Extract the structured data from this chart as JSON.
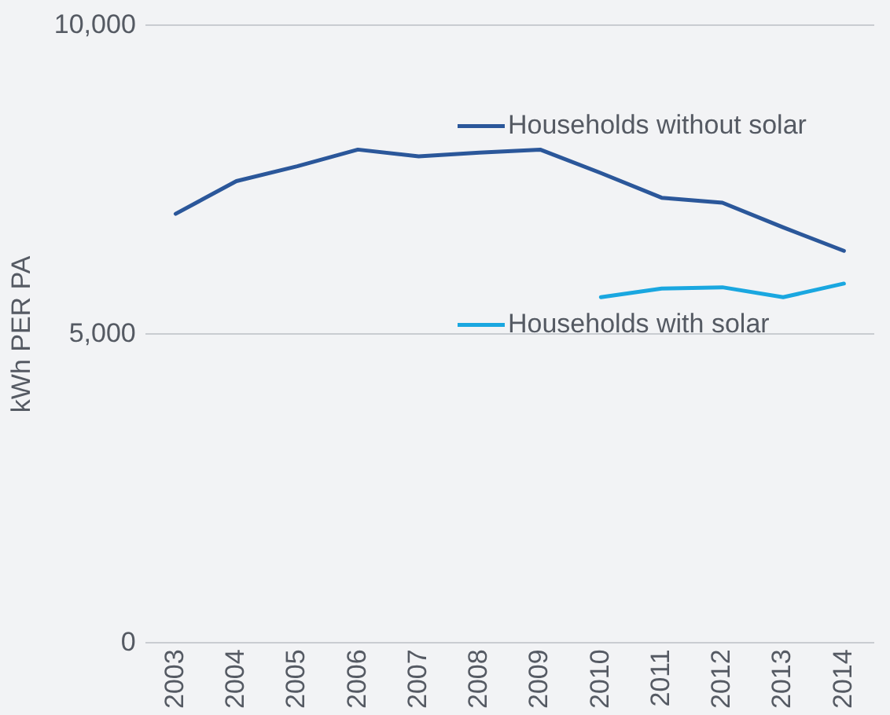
{
  "chart_data": {
    "type": "line",
    "ylabel": "kWh PER PA",
    "categories": [
      "2003",
      "2004",
      "2005",
      "2006",
      "2007",
      "2008",
      "2009",
      "2010",
      "2011",
      "2012",
      "2013",
      "2014"
    ],
    "series": [
      {
        "name": "Households without solar",
        "color": "#2b579a",
        "values": [
          6950,
          7480,
          7720,
          7990,
          7880,
          7940,
          7990,
          7610,
          7210,
          7130,
          6730,
          6350
        ]
      },
      {
        "name": "Households with solar",
        "color": "#1aa7e0",
        "values": [
          null,
          null,
          null,
          null,
          null,
          null,
          null,
          5600,
          5740,
          5760,
          5600,
          5820
        ]
      }
    ],
    "ylim": [
      0,
      10000
    ],
    "yticks": [
      {
        "value": 0,
        "label": "0"
      },
      {
        "value": 5000,
        "label": "5,000"
      },
      {
        "value": 10000,
        "label": "10,000"
      }
    ],
    "grid": "y",
    "legend": "right",
    "marker": "none",
    "line_style": "solid"
  }
}
